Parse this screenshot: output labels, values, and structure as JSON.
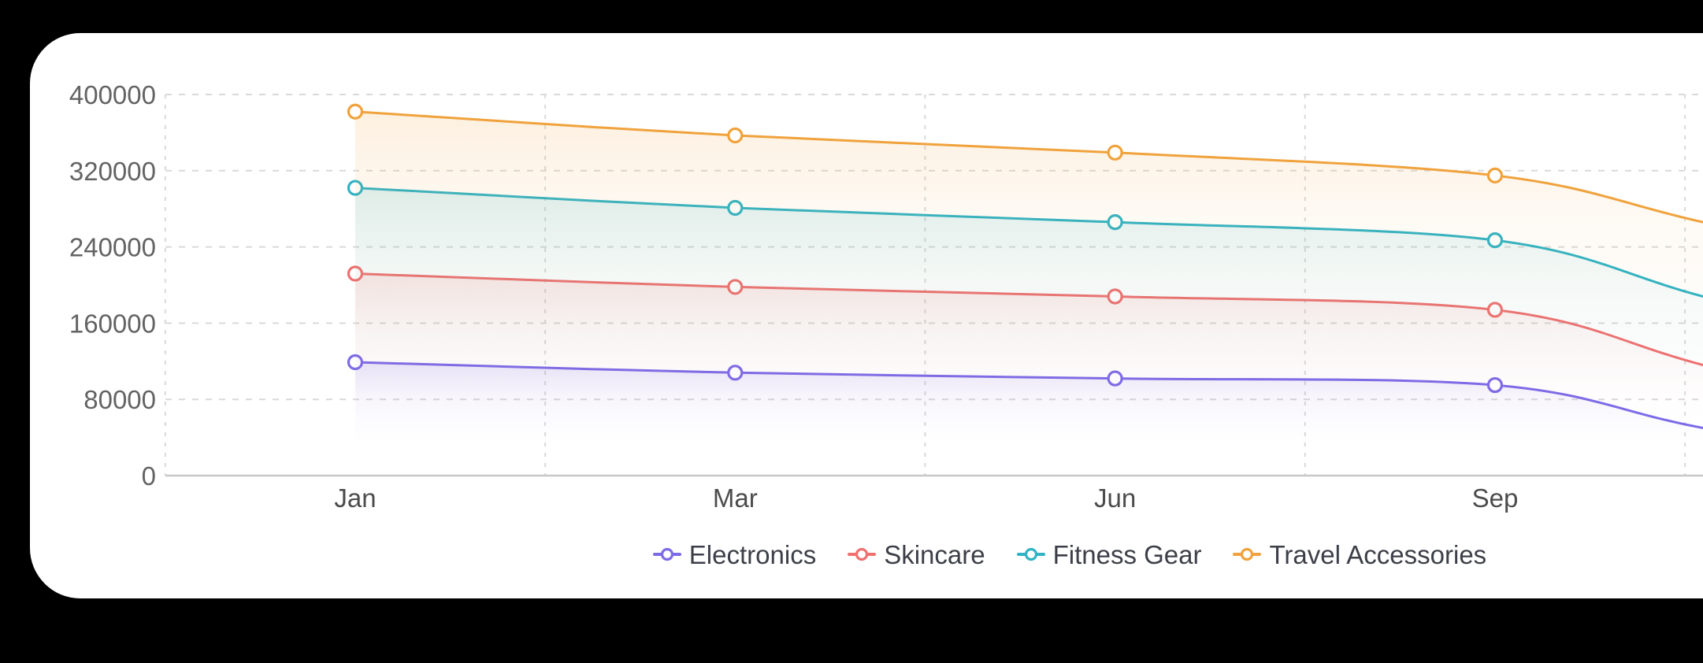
{
  "layout": {
    "frame_bg": "#000000",
    "card_bg": "#ffffff",
    "grid_color": "#d9d9d9",
    "axis_line_color": "#c8c8c8",
    "tick_text_color": "#636363",
    "month_text_color": "#4c4c4c",
    "legend_text_color": "#3c3f47"
  },
  "chart_data": {
    "type": "line",
    "smooth": true,
    "grid": {
      "horizontal_dashed": true,
      "vertical_dashed": true,
      "baseline_solid": true
    },
    "categories": [
      "Jan",
      "Mar",
      "Jun",
      "Sep"
    ],
    "y_axis": {
      "min": 0,
      "max": 400000,
      "tick_interval": 80000,
      "tick_labels": [
        "0",
        "80000",
        "160000",
        "240000",
        "320000",
        "400000"
      ]
    },
    "series": [
      {
        "name": "Electronics",
        "color": "#7c6be8",
        "values": [
          119000,
          108000,
          102000,
          95000
        ],
        "right_edge_value": 50000
      },
      {
        "name": "Skincare",
        "color": "#f07070",
        "values": [
          212000,
          198000,
          188000,
          174000
        ],
        "right_edge_value": 116000
      },
      {
        "name": "Fitness Gear",
        "color": "#2fb3c5",
        "values": [
          302000,
          281000,
          266000,
          247000
        ],
        "right_edge_value": 188000
      },
      {
        "name": "Travel Accessories",
        "color": "#f0a23c",
        "values": [
          382000,
          357000,
          339000,
          315000
        ],
        "right_edge_value": 266000
      }
    ],
    "legend": {
      "position": "bottom",
      "items": [
        "Electronics",
        "Skincare",
        "Fitness Gear",
        "Travel Accessories"
      ]
    }
  }
}
